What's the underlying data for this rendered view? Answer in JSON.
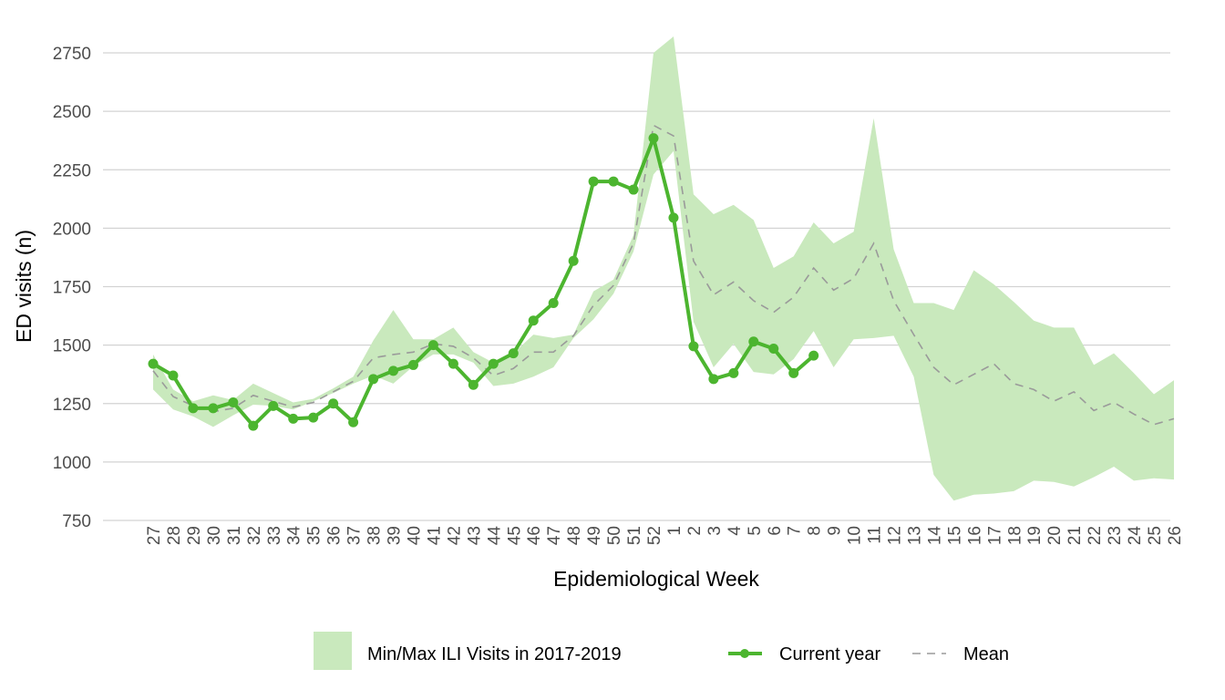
{
  "chart_data": {
    "type": "line",
    "title": "",
    "xlabel": "Epidemiological Week",
    "ylabel": "ED visits (n)",
    "ylim": [
      750,
      2820
    ],
    "yticks": [
      750,
      1000,
      1250,
      1500,
      1750,
      2000,
      2250,
      2500,
      2750
    ],
    "grid": "horizontal major gridlines",
    "legend_position": "bottom",
    "categories": [
      "27",
      "28",
      "29",
      "30",
      "31",
      "32",
      "33",
      "34",
      "35",
      "36",
      "37",
      "38",
      "39",
      "40",
      "41",
      "42",
      "43",
      "44",
      "45",
      "46",
      "47",
      "48",
      "49",
      "50",
      "51",
      "52",
      "1",
      "2",
      "3",
      "4",
      "5",
      "6",
      "7",
      "8",
      "9",
      "10",
      "11",
      "12",
      "13",
      "14",
      "15",
      "16",
      "17",
      "18",
      "19",
      "20",
      "21",
      "22",
      "23",
      "24",
      "25",
      "26"
    ],
    "series": [
      {
        "name": "Min/Max ILI Visits in 2017-2019",
        "kind": "band",
        "color": "#c9e9bd",
        "lower": [
          1310,
          1225,
          1195,
          1150,
          1200,
          1245,
          1240,
          1225,
          1260,
          1295,
          1335,
          1370,
          1335,
          1410,
          1460,
          1460,
          1425,
          1325,
          1335,
          1365,
          1405,
          1530,
          1610,
          1720,
          1900,
          2230,
          2330,
          1600,
          1405,
          1505,
          1385,
          1375,
          1440,
          1560,
          1405,
          1525,
          1530,
          1540,
          1365,
          945,
          835,
          860,
          865,
          875,
          920,
          915,
          895,
          935,
          980,
          920,
          930,
          925
        ],
        "upper": [
          1460,
          1310,
          1260,
          1285,
          1265,
          1335,
          1295,
          1255,
          1270,
          1315,
          1365,
          1520,
          1650,
          1525,
          1525,
          1575,
          1470,
          1425,
          1465,
          1545,
          1530,
          1545,
          1730,
          1780,
          1970,
          2750,
          2820,
          2145,
          2060,
          2100,
          2035,
          1830,
          1880,
          2025,
          1935,
          1985,
          2470,
          1910,
          1680,
          1680,
          1650,
          1820,
          1760,
          1685,
          1605,
          1575,
          1575,
          1415,
          1465,
          1380,
          1290,
          1350
        ]
      },
      {
        "name": "Current year",
        "kind": "line-points",
        "color": "#4cb52f",
        "values": [
          1420,
          1370,
          1230,
          1230,
          1255,
          1155,
          1240,
          1185,
          1190,
          1250,
          1170,
          1355,
          1390,
          1415,
          1500,
          1420,
          1330,
          1420,
          1465,
          1605,
          1680,
          1860,
          2200,
          2200,
          2165,
          2385,
          2045,
          1495,
          1355,
          1380,
          1515,
          1485,
          1380,
          1455,
          null,
          null,
          null,
          null,
          null,
          null,
          null,
          null,
          null,
          null,
          null,
          null,
          null,
          null,
          null,
          null,
          null,
          null
        ]
      },
      {
        "name": "Mean",
        "kind": "dashed-line",
        "color": "#9a9a9a",
        "values": [
          1390,
          1280,
          1240,
          1215,
          1230,
          1285,
          1260,
          1235,
          1255,
          1300,
          1345,
          1445,
          1460,
          1470,
          1505,
          1495,
          1445,
          1370,
          1400,
          1470,
          1470,
          1540,
          1670,
          1755,
          1935,
          2440,
          2395,
          1860,
          1715,
          1770,
          1690,
          1640,
          1705,
          1830,
          1735,
          1785,
          1935,
          1690,
          1545,
          1405,
          1330,
          1375,
          1420,
          1335,
          1310,
          1260,
          1300,
          1220,
          1255,
          1205,
          1160,
          1185
        ]
      }
    ]
  }
}
